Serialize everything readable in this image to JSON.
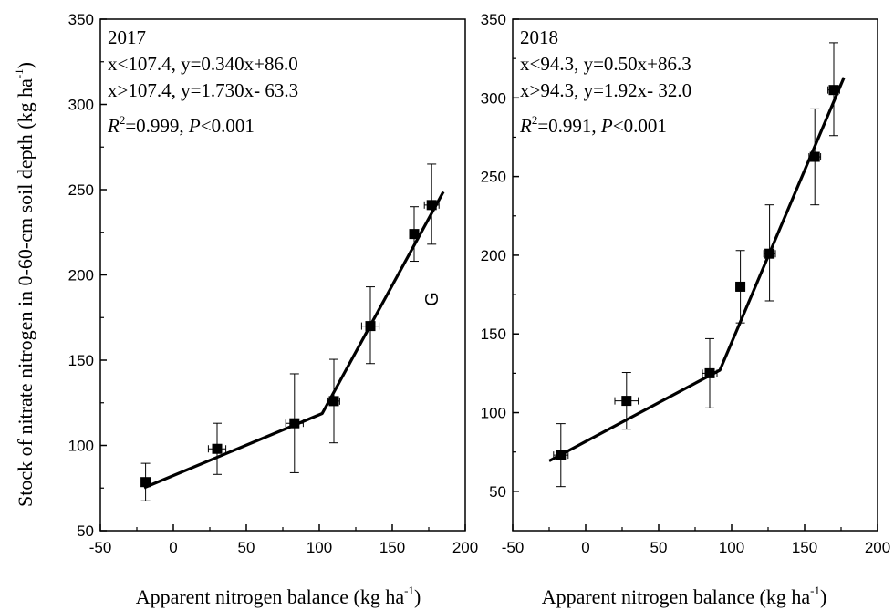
{
  "chart_data": [
    {
      "type": "scatter",
      "year_label": "2017",
      "equations": [
        "x<107.4, y=0.340x+86.0",
        "x>107.4, y=1.730x- 63.3"
      ],
      "stats": {
        "r_symbol": "R",
        "r_exp": "2",
        "r_value": "=0.999, ",
        "p_symbol": "P",
        "p_value": "<0.001"
      },
      "xlabel": {
        "main": "Apparent nitrogen balance (kg ha",
        "exp": "-1",
        "close": ")"
      },
      "ylabel": {
        "main": "Stock of nitrate nitrogen in 0-60-cm soil depth (kg ha",
        "exp": "-1",
        "close": ")"
      },
      "xlim": [
        -50,
        200
      ],
      "ylim": [
        50,
        350
      ],
      "xticks": [
        -50,
        0,
        50,
        100,
        150,
        200
      ],
      "yticks": [
        50,
        100,
        150,
        200,
        250,
        300,
        350
      ],
      "points": [
        {
          "x": -19,
          "y": 78.5,
          "ylo": 67.5,
          "yhi": 89.5,
          "xerr": 2
        },
        {
          "x": 30,
          "y": 98,
          "ylo": 83,
          "yhi": 113,
          "xerr": 6
        },
        {
          "x": 83,
          "y": 113,
          "ylo": 84,
          "yhi": 142,
          "xerr": 6
        },
        {
          "x": 110,
          "y": 126,
          "ylo": 101.5,
          "yhi": 150.5,
          "xerr": 4
        },
        {
          "x": 135,
          "y": 170,
          "ylo": 148,
          "yhi": 193,
          "xerr": 6
        },
        {
          "x": 165,
          "y": 224,
          "ylo": 208,
          "yhi": 240,
          "xerr": 2
        },
        {
          "x": 177,
          "y": 241,
          "ylo": 218,
          "yhi": 265,
          "xerr": 5
        }
      ],
      "fit": [
        [
          -20,
          75.2
        ],
        [
          102,
          118.7
        ],
        [
          185,
          248.7
        ]
      ]
    },
    {
      "type": "scatter",
      "year_label": "2018",
      "equations": [
        "x<94.3, y=0.50x+86.3",
        "x>94.3, y=1.92x- 32.0"
      ],
      "stats": {
        "r_symbol": "R",
        "r_exp": "2",
        "r_value": "=0.991, ",
        "p_symbol": "P",
        "p_value": "<0.001"
      },
      "xlabel": {
        "main": "Apparent nitrogen balance (kg ha",
        "exp": "-1",
        "close": ")"
      },
      "ylabel": {
        "main": "G",
        "exp": "",
        "close": ""
      },
      "xlim": [
        -50,
        200
      ],
      "ylim": [
        25,
        350
      ],
      "xticks": [
        -50,
        0,
        50,
        100,
        150,
        200
      ],
      "yticks": [
        50,
        100,
        150,
        200,
        250,
        300,
        350
      ],
      "points": [
        {
          "x": -17,
          "y": 73,
          "ylo": 53,
          "yhi": 93,
          "xerr": 5
        },
        {
          "x": 28,
          "y": 107.5,
          "ylo": 89.5,
          "yhi": 125.5,
          "xerr": 8
        },
        {
          "x": 85,
          "y": 125,
          "ylo": 103,
          "yhi": 147,
          "xerr": 5
        },
        {
          "x": 106,
          "y": 180,
          "ylo": 157,
          "yhi": 203,
          "xerr": 3
        },
        {
          "x": 126,
          "y": 201,
          "ylo": 171,
          "yhi": 232,
          "xerr": 4
        },
        {
          "x": 157,
          "y": 262.5,
          "ylo": 232,
          "yhi": 293,
          "xerr": 4
        },
        {
          "x": 170,
          "y": 305,
          "ylo": 276,
          "yhi": 335,
          "xerr": 4
        }
      ],
      "fit": [
        [
          -25,
          69.3
        ],
        [
          92,
          127
        ],
        [
          177,
          313
        ]
      ]
    }
  ]
}
